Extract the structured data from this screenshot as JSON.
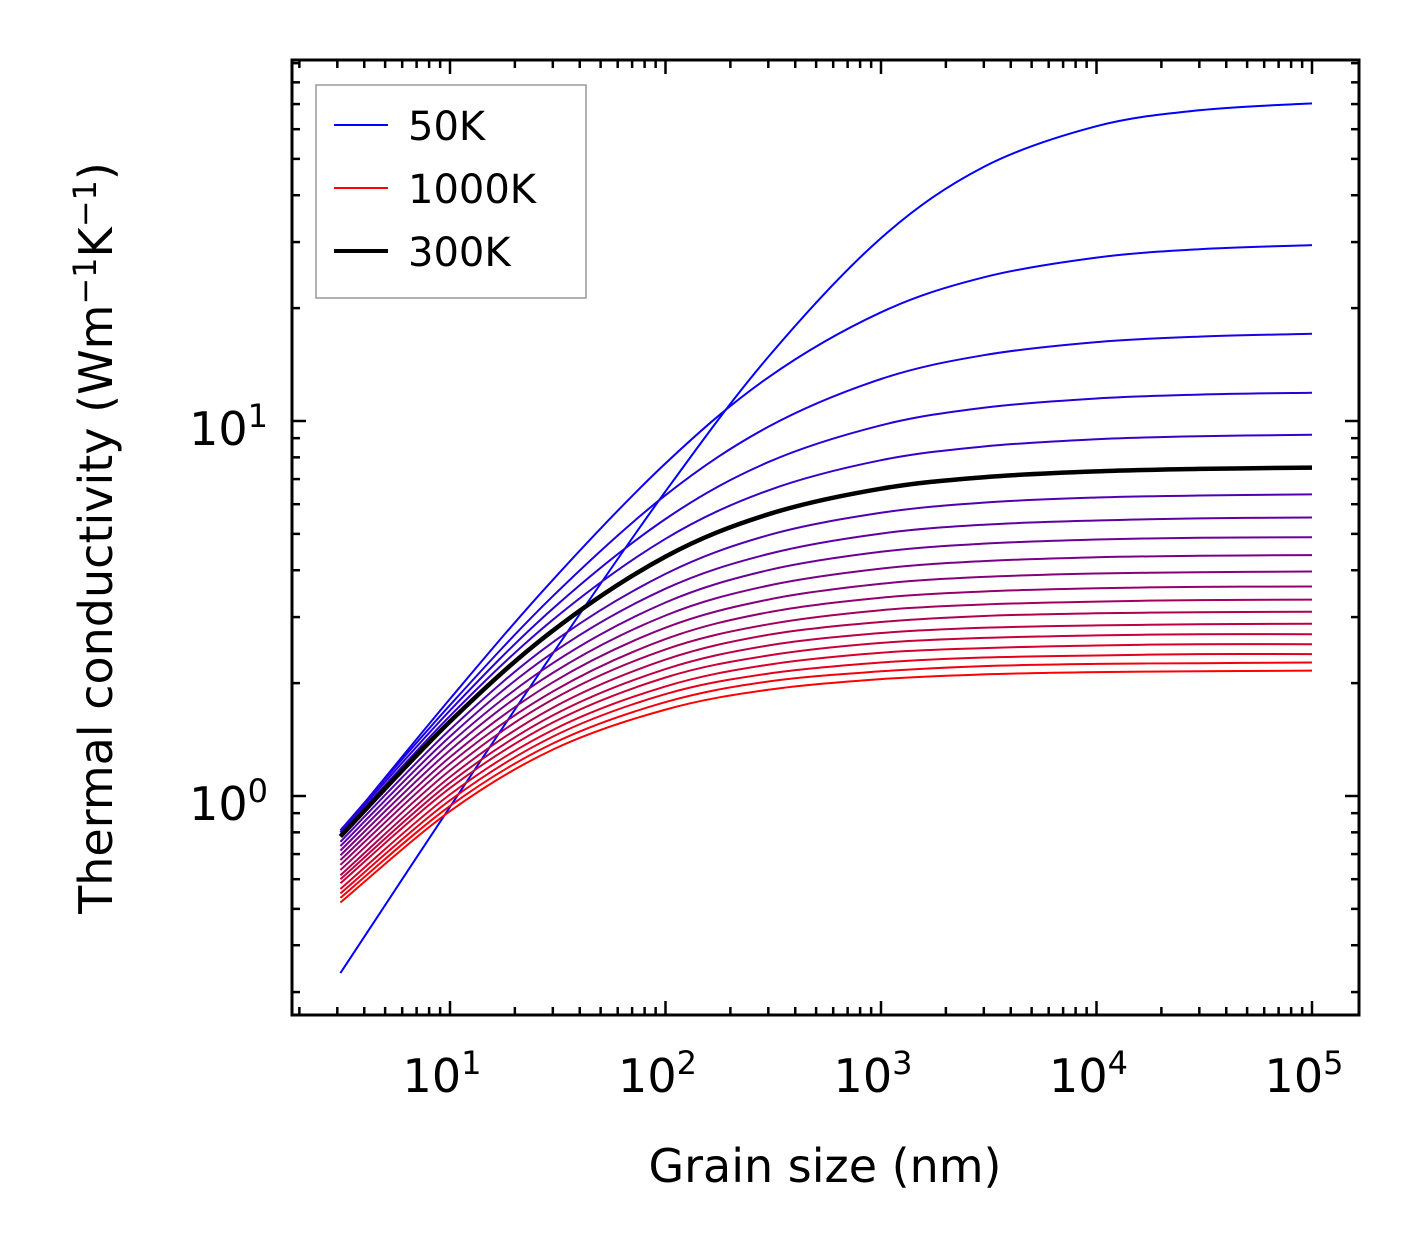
{
  "chart_data": {
    "type": "line",
    "title": "",
    "xlabel": "Grain size (nm)",
    "ylabel_parts": [
      "Thermal conductivity (Wm",
      "−1",
      "K",
      "−1",
      ")"
    ],
    "ylabel": "Thermal conductivity (Wm⁻¹K⁻¹)",
    "xscale": "log",
    "yscale": "log",
    "xlim": [
      1.86,
      165000
    ],
    "ylim": [
      0.26,
      92
    ],
    "grid": false,
    "legend_placement": "top-left",
    "x_ticks": [
      {
        "value": 10,
        "base": "10",
        "exp": "1"
      },
      {
        "value": 100,
        "base": "10",
        "exp": "2"
      },
      {
        "value": 1000,
        "base": "10",
        "exp": "3"
      },
      {
        "value": 10000,
        "base": "10",
        "exp": "4"
      },
      {
        "value": 100000,
        "base": "10",
        "exp": "5"
      }
    ],
    "y_ticks": [
      {
        "value": 1,
        "base": "10",
        "exp": "0"
      },
      {
        "value": 10,
        "base": "10",
        "exp": "1"
      }
    ],
    "legend": [
      {
        "label": "50K",
        "color": "#0000ff",
        "style": "thin"
      },
      {
        "label": "1000K",
        "color": "#ff0000",
        "style": "thin"
      },
      {
        "label": "300K",
        "color": "#000000",
        "style": "thick"
      }
    ],
    "x": [
      3.1,
      10,
      30,
      100,
      300,
      1000,
      3000,
      10000,
      30000,
      100000
    ],
    "series": [
      {
        "name": "50K",
        "temperature": 50,
        "color": "#0000ff",
        "values": [
          0.337,
          0.935,
          2.4,
          6.49,
          14.82,
          30.74,
          47.6,
          61.1,
          67.4,
          70.3
        ]
      },
      {
        "name": "100K",
        "temperature": 100,
        "color": "#0d00f2",
        "values": [
          0.8,
          1.815,
          3.77,
          7.71,
          13.07,
          19.49,
          24.17,
          27.27,
          28.71,
          29.45
        ]
      },
      {
        "name": "150K",
        "temperature": 150,
        "color": "#1b00e4",
        "values": [
          0.81,
          1.747,
          3.41,
          6.34,
          9.65,
          12.94,
          14.98,
          16.23,
          16.79,
          17.08
        ]
      },
      {
        "name": "200K",
        "temperature": 200,
        "color": "#2800d7",
        "values": [
          0.8,
          1.691,
          3.16,
          5.48,
          7.77,
          9.74,
          10.85,
          11.48,
          11.76,
          11.9
        ]
      },
      {
        "name": "250K",
        "temperature": 250,
        "color": "#3600c9",
        "values": [
          0.79,
          1.635,
          2.95,
          4.85,
          6.53,
          7.86,
          8.55,
          8.94,
          9.11,
          9.19
        ]
      },
      {
        "name": "300K",
        "temperature": 300,
        "color": "#000000",
        "highlight": true,
        "values": [
          0.78,
          1.58,
          2.76,
          4.35,
          5.64,
          6.6,
          7.08,
          7.34,
          7.45,
          7.51
        ]
      },
      {
        "name": "350K",
        "temperature": 350,
        "color": "#5000af",
        "values": [
          0.755,
          1.503,
          2.57,
          3.91,
          4.96,
          5.69,
          6.06,
          6.25,
          6.33,
          6.37
        ]
      },
      {
        "name": "400K",
        "temperature": 400,
        "color": "#5e00a1",
        "values": [
          0.735,
          1.441,
          2.41,
          3.57,
          4.42,
          5.01,
          5.29,
          5.43,
          5.5,
          5.53
        ]
      },
      {
        "name": "450K",
        "temperature": 450,
        "color": "#6b0094",
        "values": [
          0.715,
          1.382,
          2.26,
          3.28,
          4.0,
          4.48,
          4.71,
          4.83,
          4.88,
          4.9
        ]
      },
      {
        "name": "500K",
        "temperature": 500,
        "color": "#790086",
        "values": [
          0.695,
          1.325,
          2.13,
          3.03,
          3.64,
          4.04,
          4.23,
          4.33,
          4.37,
          4.39
        ]
      },
      {
        "name": "550K",
        "temperature": 550,
        "color": "#860079",
        "values": [
          0.675,
          1.27,
          2.01,
          2.81,
          3.34,
          3.68,
          3.84,
          3.92,
          3.95,
          3.97
        ]
      },
      {
        "name": "600K",
        "temperature": 600,
        "color": "#94006b",
        "values": [
          0.655,
          1.22,
          1.9,
          2.62,
          3.09,
          3.38,
          3.51,
          3.58,
          3.61,
          3.62
        ]
      },
      {
        "name": "650K",
        "temperature": 650,
        "color": "#a1005e",
        "values": [
          0.635,
          1.17,
          1.81,
          2.46,
          2.87,
          3.13,
          3.24,
          3.3,
          3.33,
          3.34
        ]
      },
      {
        "name": "700K",
        "temperature": 700,
        "color": "#af0050",
        "values": [
          0.615,
          1.124,
          1.72,
          2.31,
          2.69,
          2.91,
          3.02,
          3.07,
          3.09,
          3.1
        ]
      },
      {
        "name": "750K",
        "temperature": 750,
        "color": "#bc0043",
        "values": [
          0.6,
          1.085,
          1.64,
          2.18,
          2.52,
          2.72,
          2.81,
          2.85,
          2.87,
          2.88
        ]
      },
      {
        "name": "800K",
        "temperature": 800,
        "color": "#c90036",
        "values": [
          0.585,
          1.05,
          1.57,
          2.07,
          2.37,
          2.56,
          2.64,
          2.68,
          2.7,
          2.7
        ]
      },
      {
        "name": "850K",
        "temperature": 850,
        "color": "#d70028",
        "values": [
          0.565,
          1.009,
          1.5,
          1.96,
          2.24,
          2.41,
          2.48,
          2.52,
          2.54,
          2.54
        ]
      },
      {
        "name": "900K",
        "temperature": 900,
        "color": "#e4001b",
        "values": [
          0.55,
          0.974,
          1.44,
          1.87,
          2.12,
          2.27,
          2.34,
          2.37,
          2.39,
          2.39
        ]
      },
      {
        "name": "950K",
        "temperature": 950,
        "color": "#f2000d",
        "values": [
          0.535,
          0.941,
          1.38,
          1.78,
          2.02,
          2.15,
          2.22,
          2.25,
          2.26,
          2.27
        ]
      },
      {
        "name": "1000K",
        "temperature": 1000,
        "color": "#ff0000",
        "values": [
          0.52,
          0.911,
          1.33,
          1.7,
          1.92,
          2.05,
          2.11,
          2.14,
          2.15,
          2.16
        ]
      }
    ]
  }
}
